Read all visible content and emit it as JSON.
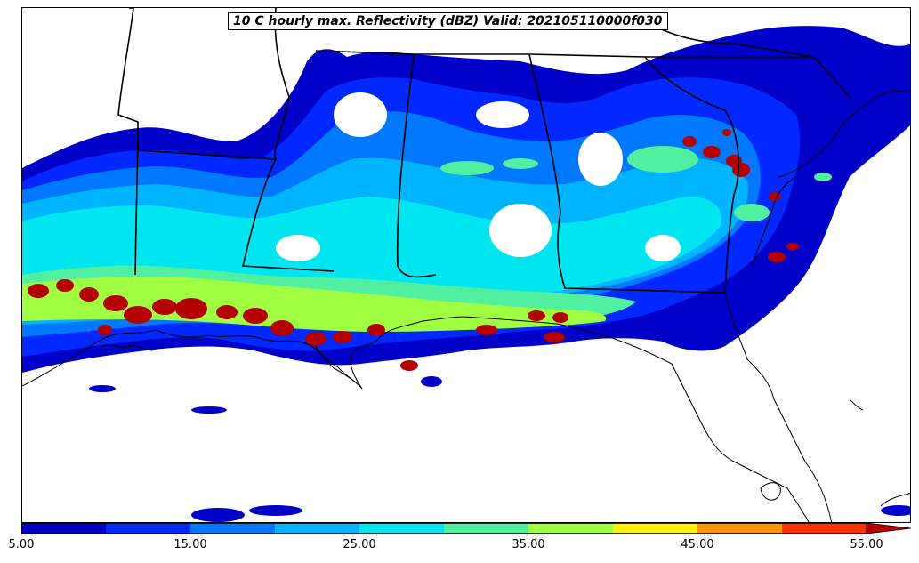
{
  "title": "10 C hourly max. Reflectivity (dBZ) Valid: 202105110000f030",
  "colorbar": {
    "tick_labels": [
      "5.00",
      "15.00",
      "25.00",
      "35.00",
      "45.00",
      "55.00"
    ],
    "bins": [
      5,
      10,
      15,
      20,
      25,
      30,
      35,
      40,
      45,
      50,
      55
    ],
    "colors": [
      "#0000c8",
      "#0028ff",
      "#0078ff",
      "#00b4ff",
      "#00e6f0",
      "#50f0a0",
      "#a0ff40",
      "#fff000",
      "#ff9600",
      "#ff3200",
      "#b40000"
    ],
    "extend": "max"
  },
  "colors": {
    "background": "#ffffff",
    "borders": "#000000"
  }
}
